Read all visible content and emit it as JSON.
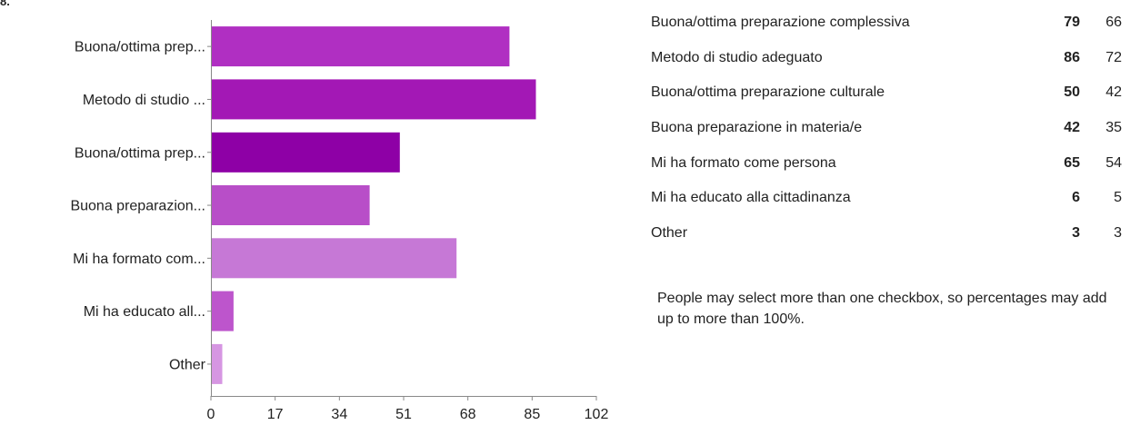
{
  "corner_mark": "8.",
  "chart_data": {
    "type": "bar",
    "orientation": "horizontal",
    "categories": [
      "Buona/ottima prep...",
      "Metodo di studio ...",
      "Buona/ottima prep...",
      "Buona preparazion...",
      "Mi ha formato com...",
      "Mi ha educato all...",
      "Other"
    ],
    "values": [
      79,
      86,
      50,
      42,
      65,
      6,
      3
    ],
    "colors": [
      "#b02fc2",
      "#a318b5",
      "#8e00a6",
      "#b84ec8",
      "#c678d6",
      "#bd55cc",
      "#d696e2"
    ],
    "xticks": [
      "0",
      "17",
      "34",
      "51",
      "68",
      "85",
      "102"
    ],
    "xlim": [
      0,
      102
    ],
    "grid": false
  },
  "summary": {
    "rows": [
      {
        "label": "Buona/ottima preparazione complessiva",
        "count": "79",
        "percent": "66"
      },
      {
        "label": "Metodo di studio adeguato",
        "count": "86",
        "percent": "72"
      },
      {
        "label": "Buona/ottima preparazione culturale",
        "count": "50",
        "percent": "42"
      },
      {
        "label": "Buona preparazione in materia/e",
        "count": "42",
        "percent": "35"
      },
      {
        "label": "Mi ha formato come persona",
        "count": "65",
        "percent": "54"
      },
      {
        "label": "Mi ha educato alla cittadinanza",
        "count": "6",
        "percent": "5"
      },
      {
        "label": "Other",
        "count": "3",
        "percent": "3"
      }
    ],
    "footnote": "People may select more than one checkbox, so percentages may add up to more than 100%."
  }
}
